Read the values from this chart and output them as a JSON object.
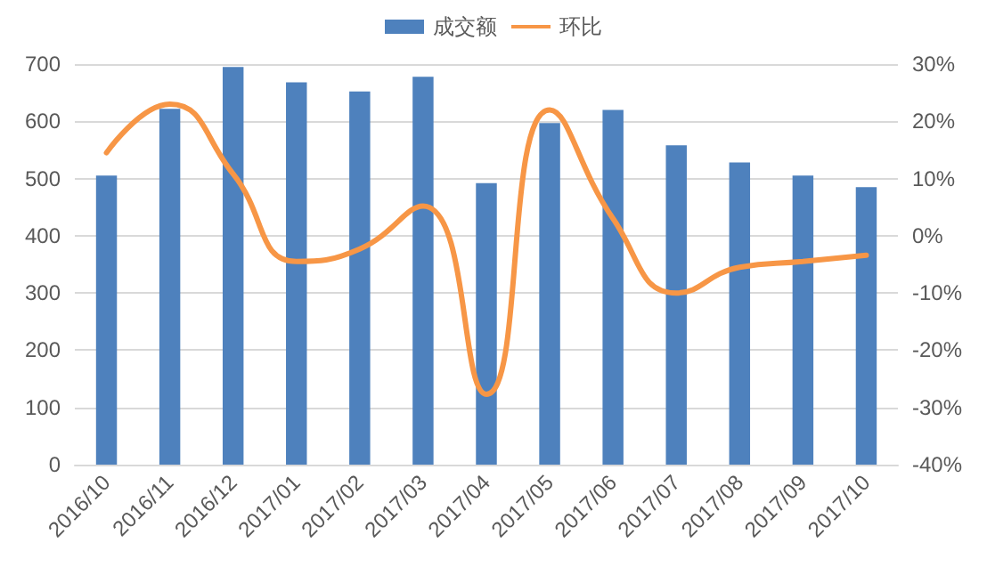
{
  "chart_data": {
    "type": "bar",
    "categories": [
      "2016/10",
      "2016/11",
      "2016/12",
      "2017/01",
      "2017/02",
      "2017/03",
      "2017/04",
      "2017/05",
      "2017/06",
      "2017/07",
      "2017/08",
      "2017/09",
      "2017/10"
    ],
    "series": [
      {
        "name": "成交额",
        "color": "#4e81bd",
        "values": [
          505,
          622,
          695,
          668,
          652,
          678,
          492,
          597,
          620,
          558,
          528,
          505,
          485
        ]
      },
      {
        "name": "环比",
        "type": "line",
        "axis": "y2",
        "color": "#f79646",
        "values": [
          14.5,
          23,
          10.8,
          -4.5,
          -2.3,
          5.2,
          -27.7,
          22,
          3,
          -10,
          -5.5,
          -4.5,
          -3.4
        ]
      }
    ],
    "ylim": [
      0,
      700
    ],
    "yticks": [
      0,
      100,
      200,
      300,
      400,
      500,
      600,
      700
    ],
    "y2lim": [
      -40,
      30
    ],
    "y2ticks": [
      {
        "value": -40,
        "label": "-40%"
      },
      {
        "value": -30,
        "label": "-30%"
      },
      {
        "value": -20,
        "label": "-20%"
      },
      {
        "value": -10,
        "label": "-10%"
      },
      {
        "value": 0,
        "label": "0%"
      },
      {
        "value": 10,
        "label": "10%"
      },
      {
        "value": 20,
        "label": "20%"
      },
      {
        "value": 30,
        "label": "30%"
      }
    ],
    "grid": "y",
    "legend": "top",
    "marker": "none"
  }
}
